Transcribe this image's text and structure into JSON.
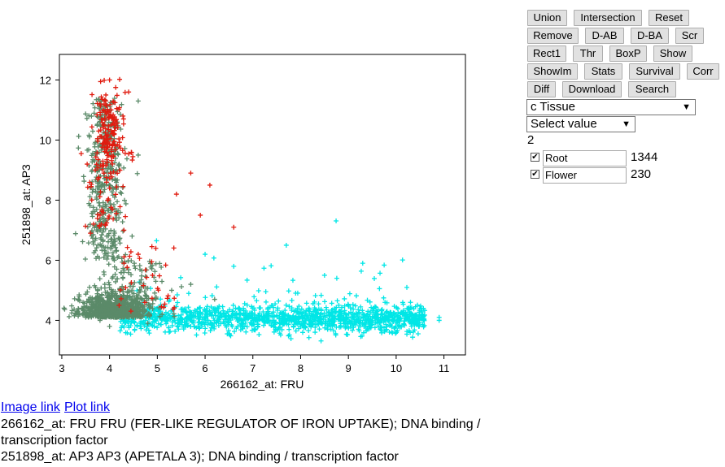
{
  "chart_data": {
    "type": "scatter",
    "xlabel": "266162_at:  FRU",
    "ylabel": "251898_at:  AP3",
    "xlim": [
      2.95,
      11.45
    ],
    "ylim": [
      2.85,
      12.85
    ],
    "xticks": [
      3,
      4,
      5,
      6,
      7,
      8,
      9,
      10,
      11
    ],
    "yticks": [
      4,
      6,
      8,
      10,
      12
    ],
    "marker": "+",
    "series": [
      {
        "name": "Root",
        "color": "#00e6e6",
        "count": 1344,
        "x_range": [
          4.2,
          11.0
        ],
        "y_range": [
          3.6,
          6.6
        ],
        "points": [
          [
            4.8,
            4.2
          ],
          [
            5.2,
            4.0
          ],
          [
            5.6,
            4.3
          ],
          [
            6.0,
            4.1
          ],
          [
            6.4,
            3.9
          ],
          [
            6.8,
            4.4
          ],
          [
            7.2,
            4.0
          ],
          [
            7.6,
            4.2
          ],
          [
            8.0,
            3.8
          ],
          [
            8.4,
            4.1
          ],
          [
            8.8,
            4.3
          ],
          [
            9.2,
            4.0
          ],
          [
            9.6,
            3.9
          ],
          [
            10.0,
            4.2
          ],
          [
            10.4,
            4.0
          ],
          [
            10.9,
            4.1
          ],
          [
            6.0,
            6.2
          ],
          [
            6.6,
            5.8
          ],
          [
            7.7,
            6.5
          ],
          [
            8.5,
            5.5
          ],
          [
            9.3,
            5.9
          ],
          [
            10.3,
            4.6
          ],
          [
            10.9,
            4.0
          ]
        ]
      },
      {
        "name": "Flower",
        "color": "#e01b0f",
        "count": 230,
        "x_range": [
          3.4,
          6.6
        ],
        "y_range": [
          3.9,
          12.4
        ],
        "points": [
          [
            4.0,
            12.0
          ],
          [
            3.8,
            11.2
          ],
          [
            4.1,
            10.5
          ],
          [
            3.9,
            10.0
          ],
          [
            4.2,
            9.8
          ],
          [
            3.7,
            9.0
          ],
          [
            4.0,
            8.4
          ],
          [
            3.8,
            7.5
          ],
          [
            4.3,
            7.0
          ],
          [
            5.7,
            8.9
          ],
          [
            6.1,
            8.5
          ],
          [
            5.4,
            8.2
          ],
          [
            5.9,
            7.5
          ],
          [
            6.6,
            7.1
          ],
          [
            4.6,
            6.2
          ],
          [
            4.3,
            5.9
          ],
          [
            4.9,
            5.5
          ],
          [
            4.2,
            4.5
          ],
          [
            3.6,
            6.9
          ],
          [
            4.4,
            11.6
          ]
        ]
      },
      {
        "name": "",
        "color": "#5b8a69",
        "x_range": [
          3.4,
          6.2
        ],
        "y_range": [
          3.3,
          11.5
        ],
        "points": [
          [
            3.5,
            4.2
          ],
          [
            3.8,
            4.0
          ],
          [
            4.0,
            3.8
          ],
          [
            4.2,
            4.3
          ],
          [
            4.5,
            4.1
          ],
          [
            4.8,
            3.9
          ],
          [
            5.1,
            4.2
          ],
          [
            3.9,
            5.2
          ],
          [
            4.1,
            6.0
          ],
          [
            4.3,
            5.6
          ],
          [
            3.8,
            7.0
          ],
          [
            4.0,
            8.5
          ],
          [
            4.2,
            9.2
          ],
          [
            4.6,
            9.5
          ],
          [
            3.9,
            10.5
          ],
          [
            4.6,
            11.3
          ],
          [
            4.1,
            4.8
          ],
          [
            5.3,
            5.0
          ],
          [
            5.7,
            5.2
          ],
          [
            6.2,
            4.7
          ]
        ]
      }
    ]
  },
  "toolbar": {
    "buttons": [
      "Union",
      "Intersection",
      "Reset",
      "Remove",
      "D-AB",
      "D-BA",
      "Scr",
      "Rect1",
      "Thr",
      "BoxP",
      "Show",
      "ShowIm",
      "Stats",
      "Survival",
      "Corr",
      "Diff",
      "Download",
      "Search"
    ]
  },
  "controls": {
    "tissue_select": "c Tissue",
    "value_select": "Select value",
    "group_count": "2",
    "groups": [
      {
        "label": "Root",
        "count": "1344",
        "checked": true
      },
      {
        "label": "Flower",
        "count": "230",
        "checked": true
      }
    ]
  },
  "links": {
    "image": "Image link",
    "plot": "Plot link"
  },
  "descriptions": [
    "266162_at: FRU FRU (FER-LIKE REGULATOR OF IRON UPTAKE); DNA binding / transcription factor",
    "251898_at: AP3 AP3 (APETALA 3); DNA binding / transcription factor"
  ]
}
